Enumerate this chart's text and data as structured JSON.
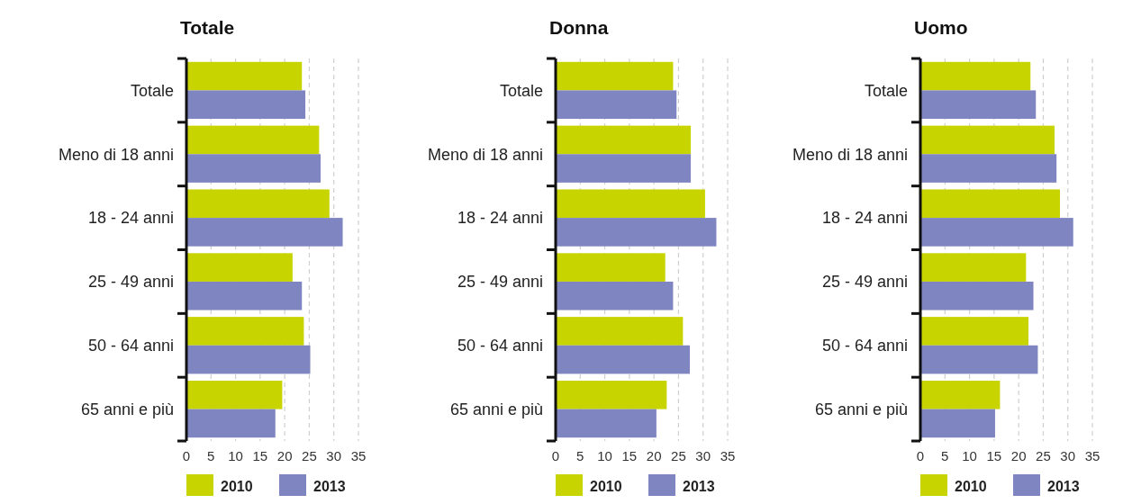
{
  "chart_data": [
    {
      "type": "bar",
      "orientation": "horizontal",
      "title": "Totale",
      "categories": [
        "Totale",
        "Meno di 18 anni",
        "18 - 24 anni",
        "25 - 49 anni",
        "50 - 64 anni",
        "65 anni e più"
      ],
      "series": [
        {
          "name": "2010",
          "color": "#c8d400",
          "values": [
            23.5,
            27.0,
            29.1,
            21.6,
            23.9,
            19.5
          ]
        },
        {
          "name": "2013",
          "color": "#7f85c0",
          "values": [
            24.2,
            27.3,
            31.8,
            23.5,
            25.2,
            18.1
          ]
        }
      ],
      "xlim": [
        0,
        35
      ],
      "xticks": [
        0,
        5,
        10,
        15,
        20,
        25,
        30,
        35
      ],
      "grid": "x",
      "legend": "bottom"
    },
    {
      "type": "bar",
      "orientation": "horizontal",
      "title": "Donna",
      "categories": [
        "Totale",
        "Meno di 18 anni",
        "18 - 24 anni",
        "25 - 49 anni",
        "50 - 64 anni",
        "65 anni e più"
      ],
      "series": [
        {
          "name": "2010",
          "color": "#c8d400",
          "values": [
            23.9,
            27.5,
            30.4,
            22.3,
            25.9,
            22.6
          ]
        },
        {
          "name": "2013",
          "color": "#7f85c0",
          "values": [
            24.6,
            27.5,
            32.7,
            23.9,
            27.3,
            20.5
          ]
        }
      ],
      "xlim": [
        0,
        35
      ],
      "xticks": [
        0,
        5,
        10,
        15,
        20,
        25,
        30,
        35
      ],
      "grid": "x",
      "legend": "bottom"
    },
    {
      "type": "bar",
      "orientation": "horizontal",
      "title": "Uomo",
      "categories": [
        "Totale",
        "Meno di 18 anni",
        "18 - 24 anni",
        "25 - 49 anni",
        "50 - 64 anni",
        "65 anni e più"
      ],
      "series": [
        {
          "name": "2010",
          "color": "#c8d400",
          "values": [
            22.4,
            27.3,
            28.4,
            21.5,
            22.0,
            16.2
          ]
        },
        {
          "name": "2013",
          "color": "#7f85c0",
          "values": [
            23.5,
            27.7,
            31.1,
            23.0,
            23.9,
            15.2
          ]
        }
      ],
      "xlim": [
        0,
        35
      ],
      "xticks": [
        0,
        5,
        10,
        15,
        20,
        25,
        30,
        35
      ],
      "grid": "x",
      "legend": "bottom"
    }
  ]
}
